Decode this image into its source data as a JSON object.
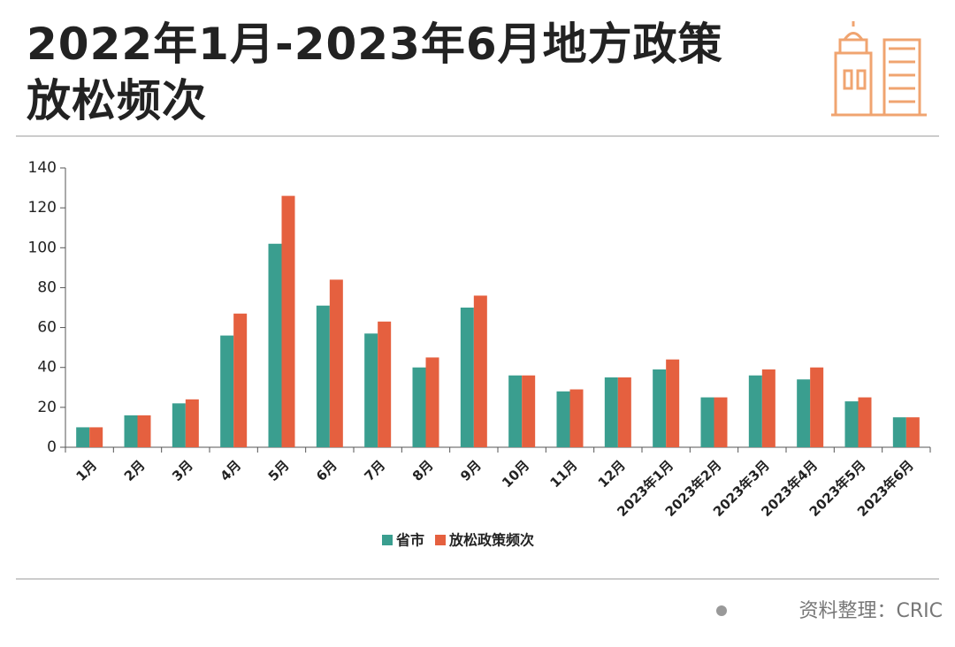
{
  "title": "2022年1月-2023年6月地方政策放松频次",
  "source": "资料整理：CRIC",
  "chart_data": {
    "type": "bar",
    "categories": [
      "1月",
      "2月",
      "3月",
      "4月",
      "5月",
      "6月",
      "7月",
      "8月",
      "9月",
      "10月",
      "11月",
      "12月",
      "2023年1月",
      "2023年2月",
      "2023年3月",
      "2023年4月",
      "2023年5月",
      "2023年6月"
    ],
    "series": [
      {
        "name": "省市",
        "color": "#3a9e8f",
        "values": [
          10,
          16,
          22,
          56,
          102,
          71,
          57,
          40,
          70,
          36,
          28,
          35,
          39,
          25,
          36,
          34,
          23,
          15
        ]
      },
      {
        "name": "放松政策频次",
        "color": "#e5603f",
        "values": [
          10,
          16,
          24,
          67,
          126,
          84,
          63,
          45,
          76,
          36,
          29,
          35,
          44,
          25,
          39,
          40,
          25,
          15
        ]
      }
    ],
    "ylim": [
      0,
      140
    ],
    "yticks": [
      0,
      20,
      40,
      60,
      80,
      100,
      120,
      140
    ],
    "legend": "bottom"
  }
}
